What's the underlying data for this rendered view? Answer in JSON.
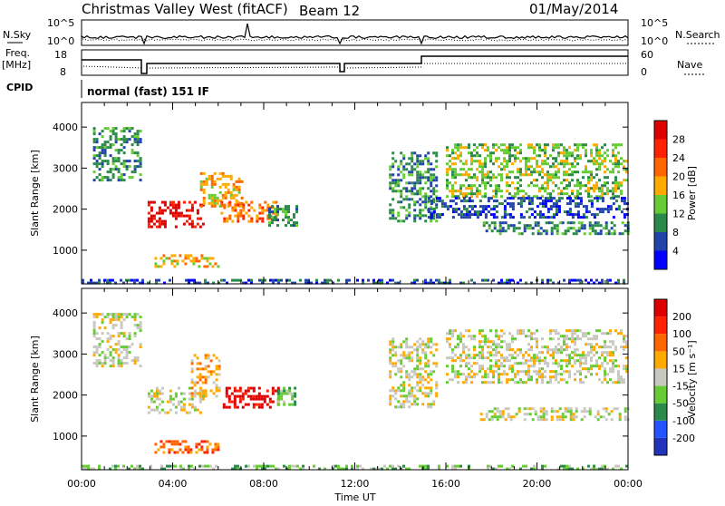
{
  "header": {
    "title": "Christmas Valley West (fitACF)",
    "beam": "Beam 12",
    "date": "01/May/2014"
  },
  "strip_top": {
    "left_label": "N.Sky",
    "right_label": "N.Search",
    "left_ticks": [
      "10^5",
      "10^0"
    ],
    "right_ticks": [
      "10^5",
      "10^0"
    ]
  },
  "strip_mid": {
    "left_label_1": "Freq.",
    "left_label_2": "[MHz]",
    "right_label": "Nave",
    "left_ticks": [
      "18",
      "8"
    ],
    "right_ticks": [
      "60",
      "0"
    ]
  },
  "cpid": {
    "label": "CPID",
    "mode": "normal (fast) 151 IF"
  },
  "axes": {
    "ylabel": "Slant Range [km]",
    "xlabel": "Time UT",
    "y_ticks": [
      "1000",
      "2000",
      "3000",
      "4000"
    ],
    "x_ticks": [
      "00:00",
      "04:00",
      "08:00",
      "12:00",
      "16:00",
      "20:00",
      "00:00"
    ]
  },
  "power_bar": {
    "label": "Power [dB]",
    "ticks": [
      "4",
      "8",
      "12",
      "16",
      "20",
      "24",
      "28"
    ],
    "colors": [
      "#0000ff",
      "#2244aa",
      "#2b8a4a",
      "#66cc33",
      "#ffaa00",
      "#ff6600",
      "#ff2200",
      "#dd0000"
    ]
  },
  "velocity_bar": {
    "label": "Velocity [m s⁻¹]",
    "ticks": [
      "200",
      "100",
      "50",
      "15",
      "-15",
      "-50",
      "-100",
      "-200"
    ],
    "colors": [
      "#2233bb",
      "#2255ff",
      "#2b8a4a",
      "#66cc33",
      "#c8c8c0",
      "#ffaa00",
      "#ff6600",
      "#ff2200",
      "#dd0000"
    ]
  },
  "chart_data": [
    {
      "type": "heatmap",
      "ylabel": "Slant Range [km]",
      "xlabel": "Time UT",
      "xlim": [
        0,
        24
      ],
      "ylim": [
        180,
        4600
      ],
      "colorbar": "Power [dB]",
      "regions": [
        {
          "t0": 0.5,
          "t1": 2.6,
          "r0": 2700,
          "r1": 4000,
          "level": 2
        },
        {
          "t0": 2.9,
          "t1": 5.3,
          "r0": 1600,
          "r1": 2200,
          "level": 7
        },
        {
          "t0": 5.2,
          "t1": 7.0,
          "r0": 2100,
          "r1": 2900,
          "level": 4
        },
        {
          "t0": 6.1,
          "t1": 8.5,
          "r0": 1700,
          "r1": 2200,
          "level": 5
        },
        {
          "t0": 8.2,
          "t1": 9.5,
          "r0": 1600,
          "r1": 2100,
          "level": 2
        },
        {
          "t0": 3.2,
          "t1": 6.0,
          "r0": 600,
          "r1": 900,
          "level": 4
        },
        {
          "t0": 13.5,
          "t1": 15.6,
          "r0": 1700,
          "r1": 3400,
          "level": 2
        },
        {
          "t0": 16.0,
          "t1": 24.0,
          "r0": 2300,
          "r1": 3600,
          "level": 3
        },
        {
          "t0": 17.5,
          "t1": 24.0,
          "r0": 1400,
          "r1": 1700,
          "level": 2
        },
        {
          "t0": 15.2,
          "t1": 24.0,
          "r0": 1800,
          "r1": 2300,
          "level": 1
        },
        {
          "t0": 0.0,
          "t1": 24.0,
          "r0": 180,
          "r1": 300,
          "level": 1
        }
      ]
    },
    {
      "type": "heatmap",
      "ylabel": "Slant Range [km]",
      "xlabel": "Time UT",
      "xlim": [
        0,
        24
      ],
      "ylim": [
        180,
        4600
      ],
      "colorbar": "Velocity [m s-1]",
      "regions": [
        {
          "t0": 0.5,
          "t1": 2.6,
          "r0": 2700,
          "r1": 4000,
          "level": 4
        },
        {
          "t0": 2.9,
          "t1": 5.3,
          "r0": 1600,
          "r1": 2200,
          "level": 4
        },
        {
          "t0": 4.8,
          "t1": 6.0,
          "r0": 2000,
          "r1": 3000,
          "level": 5
        },
        {
          "t0": 6.2,
          "t1": 8.6,
          "r0": 1700,
          "r1": 2200,
          "level": 8
        },
        {
          "t0": 8.6,
          "t1": 9.4,
          "r0": 1800,
          "r1": 2200,
          "level": 3
        },
        {
          "t0": 3.2,
          "t1": 6.0,
          "r0": 600,
          "r1": 900,
          "level": 6
        },
        {
          "t0": 13.5,
          "t1": 15.6,
          "r0": 1700,
          "r1": 3400,
          "level": 4
        },
        {
          "t0": 16.0,
          "t1": 24.0,
          "r0": 2300,
          "r1": 3600,
          "level": 4
        },
        {
          "t0": 17.5,
          "t1": 24.0,
          "r0": 1400,
          "r1": 1700,
          "level": 4
        },
        {
          "t0": 0.0,
          "t1": 24.0,
          "r0": 180,
          "r1": 300,
          "level": 3
        }
      ]
    }
  ]
}
